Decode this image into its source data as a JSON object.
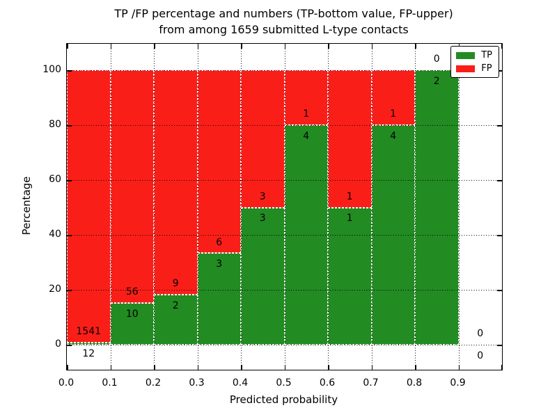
{
  "figure": {
    "title_line1": "TP /FP percentage and numbers (TP-bottom value, FP-upper)",
    "title_line2": "from among 1659 submitted L-type contacts",
    "background_color": "#ffffff"
  },
  "axes": {
    "xlabel": "Predicted probability",
    "ylabel": "Percentage",
    "ytick_values": [
      0,
      20,
      40,
      60,
      80,
      100
    ],
    "ytick_labels": [
      "0",
      "20",
      "40",
      "60",
      "80",
      "100"
    ],
    "xtick_values": [
      0.0,
      0.1,
      0.2,
      0.3,
      0.4,
      0.5,
      0.6,
      0.7,
      0.8,
      0.9,
      1.0
    ],
    "xtick_labels": [
      "0.0",
      "0.1",
      "0.2",
      "0.3",
      "0.4",
      "0.5",
      "0.6",
      "0.7",
      "0.8",
      "0.9",
      ""
    ]
  },
  "legend": {
    "items": [
      {
        "label": "TP",
        "color": "#228b22"
      },
      {
        "label": "FP",
        "color": "#fa1e19"
      }
    ]
  },
  "chart_data": {
    "type": "bar",
    "stacked": true,
    "title": "TP /FP percentage and numbers (TP-bottom value, FP-upper) from among 1659 submitted L-type contacts",
    "xlabel": "Predicted probability",
    "ylabel": "Percentage",
    "total_submitted": 1659,
    "xlim": [
      0.0,
      1.0
    ],
    "ylim": [
      -9,
      110
    ],
    "grid": "dotted",
    "legend_position": "upper right",
    "bin_width": 0.1,
    "categories": [
      "0.0-0.1",
      "0.1-0.2",
      "0.2-0.3",
      "0.3-0.4",
      "0.4-0.5",
      "0.5-0.6",
      "0.6-0.7",
      "0.7-0.8",
      "0.8-0.9",
      "0.9-1.0"
    ],
    "series": [
      {
        "name": "TP",
        "color": "#228b22",
        "counts": [
          12,
          10,
          2,
          3,
          3,
          4,
          1,
          4,
          2,
          0
        ]
      },
      {
        "name": "FP",
        "color": "#fa1e19",
        "counts": [
          1541,
          56,
          9,
          6,
          3,
          1,
          1,
          1,
          0,
          0
        ]
      }
    ],
    "tp_percent": [
      0.77,
      15.15,
      18.18,
      33.33,
      50.0,
      80.0,
      50.0,
      80.0,
      100.0,
      0.0
    ],
    "bar_height_percent": 100
  }
}
